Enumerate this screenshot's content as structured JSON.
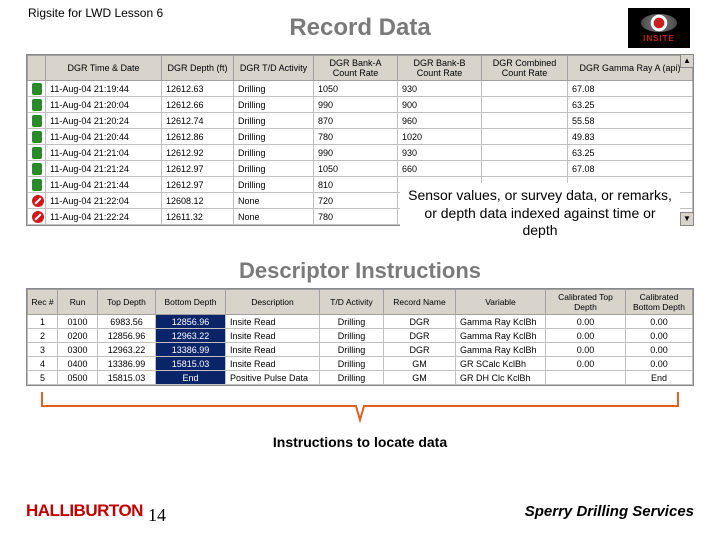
{
  "lesson_label": "Rigsite for LWD Lesson 6",
  "title_record": "Record Data",
  "title_descriptor": "Descriptor Instructions",
  "insite_label": "INSITE",
  "record_table": {
    "columns": [
      "",
      "DGR Time & Date",
      "DGR Depth (ft)",
      "DGR T/D Activity",
      "DGR Bank-A Count Rate",
      "DGR Bank-B Count Rate",
      "DGR Combined Count Rate",
      "DGR Gamma Ray A (api)"
    ],
    "col_widths": [
      "18px",
      "116px",
      "72px",
      "80px",
      "84px",
      "84px",
      "86px",
      "auto"
    ],
    "rows": [
      {
        "icon": "ok",
        "cells": [
          "11-Aug-04 21:19:44",
          "12612.63",
          "Drilling",
          "1050",
          "930",
          "",
          "67.08"
        ]
      },
      {
        "icon": "ok",
        "cells": [
          "11-Aug-04 21:20:04",
          "12612.66",
          "Drilling",
          "990",
          "900",
          "",
          "63.25"
        ]
      },
      {
        "icon": "ok",
        "cells": [
          "11-Aug-04 21:20:24",
          "12612.74",
          "Drilling",
          "870",
          "960",
          "",
          "55.58"
        ]
      },
      {
        "icon": "ok",
        "cells": [
          "11-Aug-04 21:20:44",
          "12612.86",
          "Drilling",
          "780",
          "1020",
          "",
          "49.83"
        ]
      },
      {
        "icon": "ok",
        "cells": [
          "11-Aug-04 21:21:04",
          "12612.92",
          "Drilling",
          "990",
          "930",
          "",
          "63.25"
        ]
      },
      {
        "icon": "ok",
        "cells": [
          "11-Aug-04 21:21:24",
          "12612.97",
          "Drilling",
          "1050",
          "660",
          "",
          "67.08"
        ]
      },
      {
        "icon": "ok",
        "cells": [
          "11-Aug-04 21:21:44",
          "12612.97",
          "Drilling",
          "810",
          "",
          "",
          ""
        ]
      },
      {
        "icon": "stop",
        "cells": [
          "11-Aug-04 21:22:04",
          "12608.12",
          "None",
          "720",
          "",
          "",
          ""
        ]
      },
      {
        "icon": "stop",
        "cells": [
          "11-Aug-04 21:22:24",
          "12611.32",
          "None",
          "780",
          "",
          "",
          ""
        ]
      }
    ]
  },
  "callout_sensor": "Sensor values, or survey data, or remarks, or depth data indexed against time or depth",
  "descriptor_table": {
    "columns": [
      "Rec #",
      "Run",
      "Top Depth",
      "Bottom Depth",
      "Description",
      "T/D Activity",
      "Record Name",
      "Variable",
      "Calibrated Top Depth",
      "Calibrated Bottom Depth"
    ],
    "col_widths": [
      "30px",
      "40px",
      "58px",
      "70px",
      "94px",
      "64px",
      "72px",
      "90px",
      "80px",
      "auto"
    ],
    "rows": [
      {
        "rec": "1",
        "run": "0100",
        "top": "6983.56",
        "bottom": "12856.96",
        "bottom_sel": true,
        "desc": "Insite Read",
        "act": "Drilling",
        "name": "DGR",
        "var": "Gamma Ray KclBh",
        "ctd": "0.00",
        "cbd": "0.00"
      },
      {
        "rec": "2",
        "run": "0200",
        "top": "12856.96",
        "bottom": "12963.22",
        "bottom_sel": true,
        "desc": "Insite Read",
        "act": "Drilling",
        "name": "DGR",
        "var": "Gamma Ray KclBh",
        "ctd": "0.00",
        "cbd": "0.00"
      },
      {
        "rec": "3",
        "run": "0300",
        "top": "12963.22",
        "bottom": "13386.99",
        "bottom_sel": true,
        "desc": "Insite Read",
        "act": "Drilling",
        "name": "DGR",
        "var": "Gamma Ray KclBh",
        "ctd": "0.00",
        "cbd": "0.00"
      },
      {
        "rec": "4",
        "run": "0400",
        "top": "13386.99",
        "bottom": "15815.03",
        "bottom_sel": true,
        "desc": "Insite Read",
        "act": "Drilling",
        "name": "GM",
        "var": "GR SCalc KclBh",
        "ctd": "0.00",
        "cbd": "0.00"
      },
      {
        "rec": "5",
        "run": "0500",
        "top": "15815.03",
        "bottom": "End",
        "bottom_sel": true,
        "desc": "Positive Pulse Data",
        "act": "Drilling",
        "name": "GM",
        "var": "GR DH Clc KclBh",
        "ctd": "",
        "cbd": "End"
      }
    ]
  },
  "callout_instructions": "Instructions to locate data",
  "footer": {
    "halliburton": "HALLIBURTON",
    "sperry": "Sperry Drilling Services",
    "page": "14"
  },
  "colors": {
    "title_gray": "#7a7a7a",
    "header_bg": "#d8d4cc",
    "sel_bg": "#0a246a",
    "bracket": "#e06020",
    "halliburton_red": "#c00000"
  }
}
